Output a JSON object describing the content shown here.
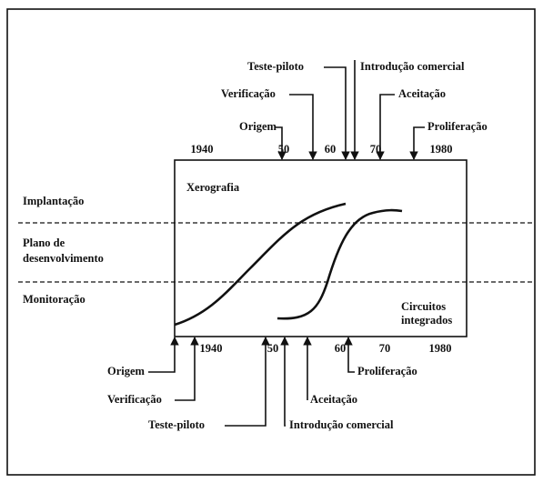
{
  "top_axis": {
    "ticks": [
      "1940",
      "50",
      "60",
      "70",
      "1980"
    ]
  },
  "bottom_axis": {
    "ticks": [
      "1940",
      "50",
      "60",
      "70",
      "1980"
    ]
  },
  "phases": [
    "Implantação",
    "Plano de",
    "desenvolvimento",
    "Monitoração"
  ],
  "curves": {
    "xerografia": "Xerografia",
    "circuitos": [
      "Circuitos",
      "integrados"
    ]
  },
  "top_annotations": [
    "Teste-piloto",
    "Introdução comercial",
    "Verificação",
    "Aceitação",
    "Origem",
    "Proliferação"
  ],
  "bottom_annotations": [
    "Origem",
    "Proliferação",
    "Verificação",
    "Aceitação",
    "Teste-piloto",
    "Introdução comercial"
  ]
}
